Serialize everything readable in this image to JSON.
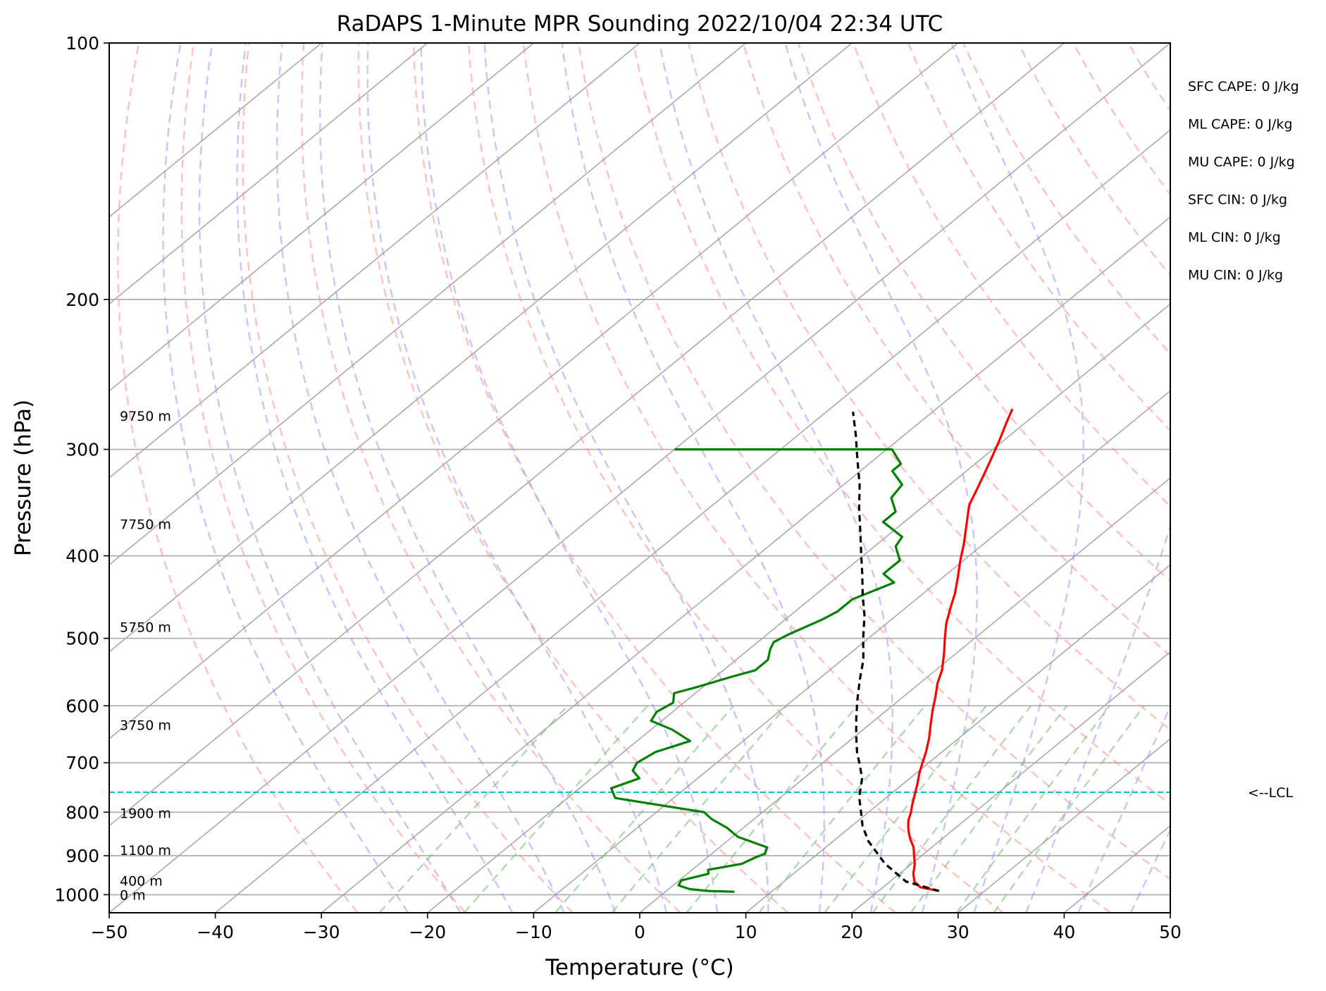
{
  "chart_data": {
    "type": "line",
    "title": "RaDAPS 1-Minute MPR Sounding 2022/10/04 22:34 UTC",
    "xlabel": "Temperature (°C)",
    "ylabel": "Pressure (hPa)",
    "xlim": [
      -50,
      50
    ],
    "ylim": [
      1050,
      100
    ],
    "y_scale": "log",
    "x_ticks": [
      -50,
      -40,
      -30,
      -20,
      -10,
      0,
      10,
      20,
      30,
      40,
      50
    ],
    "x_tick_labels": [
      "−50",
      "−40",
      "−30",
      "−20",
      "−10",
      "0",
      "10",
      "20",
      "30",
      "40",
      "50"
    ],
    "y_ticks": [
      100,
      200,
      300,
      400,
      500,
      600,
      700,
      800,
      900,
      1000
    ],
    "y_tick_labels": [
      "100",
      "200",
      "300",
      "400",
      "500",
      "600",
      "700",
      "800",
      "900",
      "1000"
    ],
    "grid": true,
    "series": [
      {
        "color": "#ff0000",
        "points": [
          [
            25.7,
            990
          ],
          [
            23.5,
            980
          ],
          [
            22.3,
            965
          ],
          [
            21.3,
            945
          ],
          [
            20.3,
            920
          ],
          [
            19.3,
            900
          ],
          [
            18.3,
            880
          ],
          [
            17.0,
            860
          ],
          [
            16.0,
            843
          ],
          [
            15.3,
            830
          ],
          [
            14.7,
            818
          ],
          [
            14.0,
            800
          ],
          [
            13.3,
            785
          ],
          [
            12.2,
            760
          ],
          [
            11.3,
            740
          ],
          [
            10.3,
            720
          ],
          [
            9.4,
            700
          ],
          [
            8.5,
            680
          ],
          [
            7.2,
            655
          ],
          [
            5.7,
            630
          ],
          [
            4.3,
            607
          ],
          [
            3.0,
            585
          ],
          [
            1.7,
            565
          ],
          [
            0.6,
            545
          ],
          [
            -1.2,
            520
          ],
          [
            -2.8,
            500
          ],
          [
            -4.4,
            480
          ],
          [
            -5.8,
            460
          ],
          [
            -7.0,
            443
          ],
          [
            -8.5,
            425
          ],
          [
            -10.3,
            405
          ],
          [
            -11.8,
            388
          ],
          [
            -13.8,
            368
          ],
          [
            -15.8,
            349
          ],
          [
            -17.0,
            333
          ],
          [
            -18.2,
            318
          ],
          [
            -19.4,
            304
          ],
          [
            -20.4,
            293
          ],
          [
            -21.7,
            280
          ],
          [
            -22.8,
            269
          ]
        ]
      },
      {
        "color": "#008000",
        "points": [
          [
            6.5,
            992
          ],
          [
            4.0,
            990
          ],
          [
            2.0,
            985
          ],
          [
            0.5,
            975
          ],
          [
            0.2,
            962
          ],
          [
            2.0,
            945
          ],
          [
            1.5,
            935
          ],
          [
            4.0,
            920
          ],
          [
            4.5,
            905
          ],
          [
            5.0,
            895
          ],
          [
            4.5,
            880
          ],
          [
            0.5,
            855
          ],
          [
            -0.3,
            847
          ],
          [
            -1.5,
            835
          ],
          [
            -4.0,
            815
          ],
          [
            -5.5,
            800
          ],
          [
            -15.5,
            770
          ],
          [
            -17.0,
            750
          ],
          [
            -15.5,
            730
          ],
          [
            -17.0,
            715
          ],
          [
            -17.5,
            700
          ],
          [
            -17.0,
            680
          ],
          [
            -15.0,
            660
          ],
          [
            -18.0,
            640
          ],
          [
            -21.0,
            625
          ],
          [
            -21.5,
            610
          ],
          [
            -21.0,
            595
          ],
          [
            -22.0,
            580
          ],
          [
            -20.5,
            570
          ],
          [
            -18.5,
            555
          ],
          [
            -17.0,
            545
          ],
          [
            -17.0,
            530
          ],
          [
            -18.0,
            515
          ],
          [
            -18.5,
            505
          ],
          [
            -18.0,
            495
          ],
          [
            -16.5,
            475
          ],
          [
            -16.0,
            465
          ],
          [
            -16.0,
            460
          ],
          [
            -16.0,
            450
          ],
          [
            -14.0,
            430
          ],
          [
            -16.0,
            420
          ],
          [
            -16.0,
            405
          ],
          [
            -18.0,
            390
          ],
          [
            -18.5,
            380
          ],
          [
            -22.0,
            365
          ],
          [
            -22.0,
            355
          ],
          [
            -24.0,
            342
          ],
          [
            -24.5,
            330
          ],
          [
            -27.0,
            318
          ],
          [
            -27.0,
            312
          ],
          [
            -29.5,
            300
          ],
          [
            -42.0,
            300
          ],
          [
            -50.0,
            300
          ]
        ]
      },
      {
        "color": "#000000",
        "dashed": true,
        "points": [
          [
            25.7,
            990
          ],
          [
            21.5,
            965
          ],
          [
            17.5,
            920
          ],
          [
            13.3,
            865
          ],
          [
            11.0,
            830
          ],
          [
            9.0,
            795
          ],
          [
            7.5,
            770
          ],
          [
            7.0,
            760
          ],
          [
            5.5,
            730
          ],
          [
            3.8,
            705
          ],
          [
            2.0,
            680
          ],
          [
            0.0,
            650
          ],
          [
            -2.0,
            620
          ],
          [
            -4.0,
            590
          ],
          [
            -6.0,
            560
          ],
          [
            -8.0,
            530
          ],
          [
            -10.5,
            500
          ],
          [
            -13.0,
            470
          ],
          [
            -15.5,
            445
          ],
          [
            -18.0,
            420
          ],
          [
            -20.5,
            397
          ],
          [
            -23.0,
            375
          ],
          [
            -25.8,
            352
          ],
          [
            -28.5,
            330
          ],
          [
            -31.5,
            309
          ],
          [
            -34.5,
            289
          ],
          [
            -37.5,
            271
          ]
        ]
      }
    ],
    "height_labels": [
      {
        "text": "9750 m",
        "p": 274
      },
      {
        "text": "7750 m",
        "p": 367
      },
      {
        "text": "5750 m",
        "p": 485
      },
      {
        "text": "3750 m",
        "p": 632
      },
      {
        "text": "1900 m",
        "p": 802
      },
      {
        "text": "1100 m",
        "p": 886
      },
      {
        "text": "400 m",
        "p": 963
      },
      {
        "text": "0 m",
        "p": 1000
      }
    ],
    "lcl": {
      "p": 758,
      "label": "<--LCL"
    },
    "indices": [
      "SFC CAPE: 0 J/kg",
      "ML CAPE: 0 J/kg",
      "MU CAPE: 0 J/kg",
      "SFC CIN: 0 J/kg",
      "ML CIN: 0 J/kg",
      "MU CIN: 0 J/kg"
    ],
    "colors": {
      "isotherms": "#a9a9a9",
      "dry_adiabats": "#ff8c8c",
      "moist_adiabats": "#8c8cff",
      "mixing_ratio": "#7cbf7c",
      "lcl_line": "#00bfbf"
    }
  }
}
